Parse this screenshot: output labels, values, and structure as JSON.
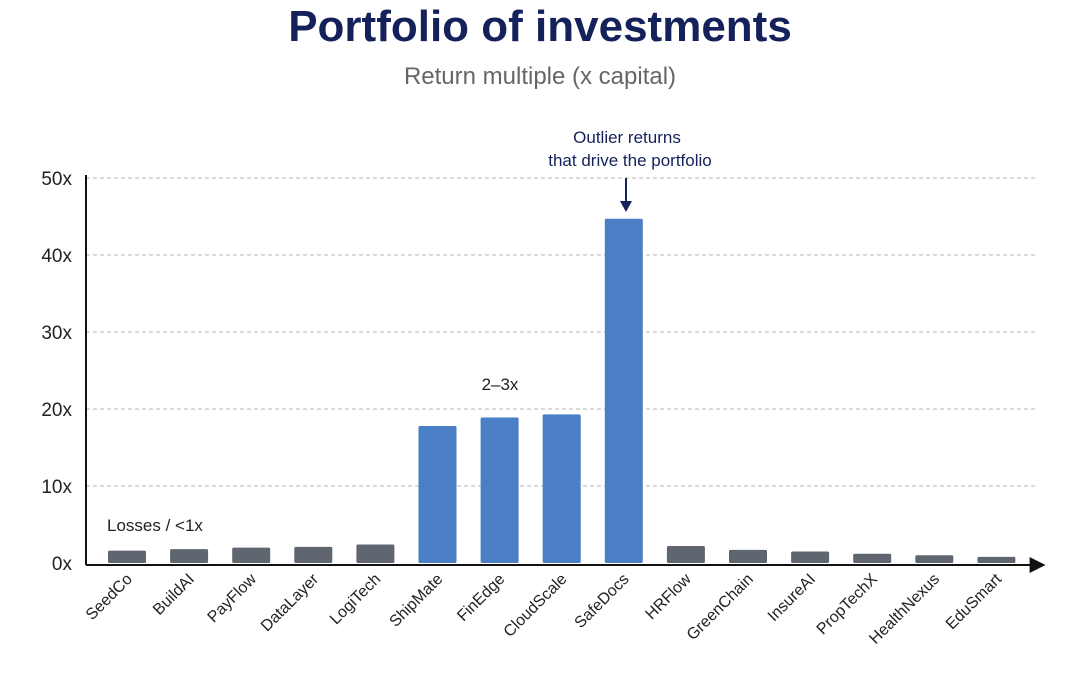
{
  "header": {
    "title": "Portfolio of investments",
    "subtitle": "Return multiple (x capital)"
  },
  "chart_data": {
    "type": "bar",
    "title": "Portfolio of investments",
    "subtitle": "Return multiple (x capital)",
    "xlabel": "",
    "ylabel": "",
    "ylim": [
      0,
      50
    ],
    "yticks": [
      0,
      10,
      20,
      30,
      40,
      50
    ],
    "ytick_labels": [
      "0x",
      "10x",
      "20x",
      "30x",
      "40x",
      "50x"
    ],
    "grid": true,
    "categories": [
      "SeedCo",
      "BuildAI",
      "PayFlow",
      "DataLayer",
      "LogiTech",
      "ShipMate",
      "FinEdge",
      "CloudScale",
      "SafeDocs",
      "HRFlow",
      "GreenChain",
      "InsureAI",
      "PropTechX",
      "HealthNexus",
      "EduSmart"
    ],
    "values": [
      1.6,
      1.8,
      2.0,
      2.1,
      2.4,
      17.8,
      18.9,
      19.3,
      44.7,
      2.2,
      1.7,
      1.5,
      1.2,
      1.0,
      0.8
    ],
    "colors": {
      "highlight": "#4a7ec5",
      "muted": "#5f6670",
      "title": "#14215a",
      "grid": "#b5b5b5"
    },
    "highlighted": [
      "ShipMate",
      "FinEdge",
      "CloudScale",
      "SafeDocs"
    ],
    "annotations": {
      "losses": "Losses / <1x",
      "mid": "2–3x",
      "outlier_line1": "Outlier returns",
      "outlier_line2": "that drive the portfolio"
    }
  }
}
